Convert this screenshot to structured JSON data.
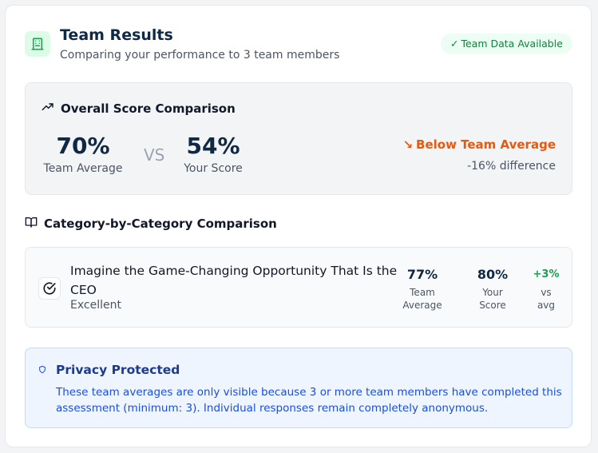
{
  "header": {
    "title": "Team Results",
    "subtitle": "Comparing your performance to 3 team members",
    "icon": "building-icon",
    "badge": {
      "check": "✓",
      "label": "Team Data Available"
    }
  },
  "overall": {
    "title": "Overall Score Comparison",
    "icon": "trending-up-icon",
    "team_average": {
      "value": "70%",
      "label": "Team Average"
    },
    "vs": "VS",
    "your_score": {
      "value": "54%",
      "label": "Your Score"
    },
    "status": {
      "arrow": "↘",
      "label": "Below Team Average"
    },
    "difference": "-16% difference"
  },
  "categories": {
    "title": "Category-by-Category Comparison",
    "icon": "book-open-icon",
    "items": [
      {
        "name": "Imagine the Game-Changing Opportunity That Is the CEO",
        "rating": "Excellent",
        "icon": "check-circle-icon",
        "team_average": {
          "value": "77%",
          "label_1": "Team",
          "label_2": "Average"
        },
        "your_score": {
          "value": "80%",
          "label_1": "Your",
          "label_2": "Score"
        },
        "delta": {
          "value": "+3%",
          "label_1": "vs",
          "label_2": "avg"
        }
      }
    ]
  },
  "privacy": {
    "title": "Privacy Protected",
    "icon": "shield-icon",
    "text": "These team averages are only visible because 3 or more team members have completed this assessment (minimum: 3). Individual responses remain completely anonymous."
  },
  "colors": {
    "primary_navy": "#0f2944",
    "success_green": "#16a34a",
    "warning_orange": "#ea580c",
    "info_blue": "#1d4ed8"
  }
}
